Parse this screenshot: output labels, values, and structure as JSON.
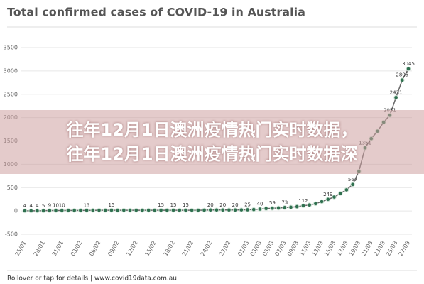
{
  "chart_data": {
    "type": "line",
    "title": "Total confirmed cases of COVID-19 in Australia",
    "footer": "Rollover or tap for details | www.covid19data.com.au",
    "categories": [
      "25/01",
      null,
      null,
      "28/01",
      null,
      null,
      "31/01",
      null,
      null,
      "03/02",
      null,
      null,
      "06/02",
      null,
      null,
      "09/02",
      null,
      null,
      "12/02",
      null,
      null,
      "15/02",
      null,
      null,
      "18/02",
      null,
      null,
      "21/02",
      null,
      null,
      "24/02",
      null,
      null,
      "27/02",
      null,
      null,
      "01/03",
      null,
      "03/03",
      null,
      "05/03",
      null,
      "07/03",
      null,
      "09/03",
      null,
      "11/03",
      null,
      "13/03",
      null,
      "15/03",
      null,
      "17/03",
      null,
      "19/03",
      null,
      "21/03",
      null,
      "23/03",
      null,
      "25/03",
      null,
      "27/03"
    ],
    "values": [
      4,
      4,
      4,
      5,
      9,
      10,
      10,
      12,
      12,
      12,
      13,
      14,
      15,
      15,
      15,
      15,
      15,
      15,
      15,
      15,
      15,
      15,
      15,
      15,
      15,
      15,
      15,
      15,
      15,
      17,
      20,
      20,
      20,
      20,
      20,
      22,
      25,
      30,
      40,
      52,
      59,
      63,
      73,
      80,
      92,
      112,
      128,
      156,
      200,
      249,
      298,
      376,
      452,
      567,
      850,
      1351,
      1550,
      1709,
      1900,
      2051,
      2431,
      2805,
      3045
    ],
    "value_labels": [
      "4",
      "4",
      "4",
      "5",
      "9",
      "10",
      "10",
      null,
      null,
      null,
      "13",
      null,
      null,
      null,
      "15",
      null,
      null,
      null,
      null,
      null,
      null,
      null,
      "15",
      null,
      "15",
      null,
      "15",
      null,
      null,
      null,
      "20",
      null,
      "20",
      null,
      "20",
      null,
      "25",
      null,
      "40",
      null,
      "59",
      null,
      "73",
      null,
      null,
      "112",
      null,
      null,
      null,
      "249",
      null,
      null,
      null,
      "567",
      null,
      "1351",
      null,
      null,
      null,
      "2051",
      "2431",
      "2805",
      "3045"
    ],
    "color": "#2f6f4f",
    "line_color": "#666666",
    "ylim": [
      -500,
      3500
    ],
    "yticks": [
      -500,
      0,
      500,
      1000,
      1500,
      2000,
      2500,
      3000,
      3500
    ],
    "grid": true
  },
  "overlay": {
    "lines": [
      "往年12月1日澳洲疫情热门实时数据，",
      "往年12月1日澳洲疫情热门实时数据深"
    ]
  }
}
